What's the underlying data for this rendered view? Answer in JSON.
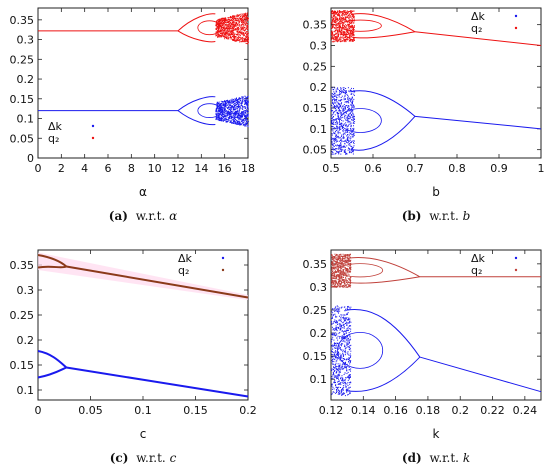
{
  "colors": {
    "dk": "#1a1aee",
    "q2_a": "#ee1111",
    "q2_c": "#8b3a1a",
    "q2_d": "#c0403a",
    "band": "#ffd9ee"
  },
  "chart_data": [
    {
      "id": "a",
      "type": "scatter",
      "xlabel": "α",
      "caption_letter": "(a)",
      "caption_text": "w.r.t. ",
      "caption_var": "α",
      "xlim": [
        0,
        18
      ],
      "ylim": [
        0,
        0.38
      ],
      "xticks": [
        0,
        2,
        4,
        6,
        8,
        10,
        12,
        14,
        16,
        18
      ],
      "xticklabels": [
        "0",
        "2",
        "4",
        "6",
        "8",
        "10",
        "12",
        "14",
        "16",
        "18"
      ],
      "yticks": [
        0,
        0.05,
        0.1,
        0.15,
        0.2,
        0.25,
        0.3,
        0.35
      ],
      "yticklabels": [
        "0",
        "0.05",
        "0.1",
        "0.15",
        "0.2",
        "0.25",
        "0.3",
        "0.35"
      ],
      "legend": {
        "position": "bottom-left",
        "entries": [
          "Δk",
          "q₂"
        ]
      },
      "series": [
        {
          "name": "Δk",
          "color": "dk",
          "base": 0.12,
          "bifurcation": 12,
          "spread": [
            0.08,
            0.16
          ],
          "chaos_start": 15.2
        },
        {
          "name": "q₂",
          "color": "q2_a",
          "base": 0.322,
          "bifurcation": 12,
          "spread": [
            0.29,
            0.37
          ],
          "chaos_start": 15.2
        }
      ]
    },
    {
      "id": "b",
      "type": "scatter",
      "xlabel": "b",
      "caption_letter": "(b)",
      "caption_text": "w.r.t. ",
      "caption_var": "b",
      "xlim": [
        0.5,
        1
      ],
      "ylim": [
        0.03,
        0.39
      ],
      "xticks": [
        0.5,
        0.6,
        0.7,
        0.8,
        0.9,
        1
      ],
      "xticklabels": [
        "0.5",
        "0.6",
        "0.7",
        "0.8",
        "0.9",
        "1"
      ],
      "yticks": [
        0.05,
        0.1,
        0.15,
        0.2,
        0.25,
        0.3,
        0.35
      ],
      "yticklabels": [
        "0.05",
        "0.1",
        "0.15",
        "0.2",
        "0.25",
        "0.3",
        "0.35"
      ],
      "legend": {
        "position": "top-right",
        "entries": [
          "Δk",
          "q₂"
        ]
      },
      "series": [
        {
          "name": "Δk",
          "color": "dk",
          "line_start": [
            0.7,
            0.13
          ],
          "line_end": [
            1,
            0.1
          ]
        },
        {
          "name": "q₂",
          "color": "q2_a",
          "line_start": [
            0.7,
            0.333
          ],
          "line_end": [
            1,
            0.3
          ]
        }
      ]
    },
    {
      "id": "c",
      "type": "line",
      "xlabel": "c",
      "caption_letter": "(c)",
      "caption_text": "w.r.t. ",
      "caption_var": "c",
      "xlim": [
        0,
        0.2
      ],
      "ylim": [
        0.08,
        0.38
      ],
      "xticks": [
        0,
        0.05,
        0.1,
        0.15,
        0.2
      ],
      "xticklabels": [
        "0",
        "0.05",
        "0.1",
        "0.15",
        "0.2"
      ],
      "yticks": [
        0.1,
        0.15,
        0.2,
        0.25,
        0.3,
        0.35
      ],
      "yticklabels": [
        "0.1",
        "0.15",
        "0.2",
        "0.25",
        "0.3",
        "0.35"
      ],
      "legend": {
        "position": "top-right",
        "entries": [
          "Δk",
          "q₂"
        ]
      },
      "series": [
        {
          "name": "Δk",
          "color": "dk",
          "branch_upper": 0.178,
          "branch_lower": 0.125,
          "merge": [
            0.027,
            0.145
          ],
          "end": [
            0.2,
            0.087
          ]
        },
        {
          "name": "q₂",
          "color": "q2_c",
          "branch_upper": 0.37,
          "branch_lower": 0.345,
          "merge": [
            0.027,
            0.347
          ],
          "end": [
            0.2,
            0.285
          ]
        }
      ]
    },
    {
      "id": "d",
      "type": "scatter",
      "xlabel": "k",
      "caption_letter": "(d)",
      "caption_text": "w.r.t. ",
      "caption_var": "k",
      "xlim": [
        0.12,
        0.25
      ],
      "ylim": [
        0.055,
        0.38
      ],
      "xticks": [
        0.12,
        0.14,
        0.16,
        0.18,
        0.2,
        0.22,
        0.24
      ],
      "xticklabels": [
        "0.12",
        "0.14",
        "0.16",
        "0.18",
        "0.2",
        "0.22",
        "0.24"
      ],
      "yticks": [
        0.1,
        0.15,
        0.2,
        0.25,
        0.3,
        0.35
      ],
      "yticklabels": [
        "0.1",
        "0.15",
        "0.2",
        "0.25",
        "0.3",
        "0.35"
      ],
      "legend": {
        "position": "top-right",
        "entries": [
          "Δk",
          "q₂"
        ]
      },
      "series": [
        {
          "name": "Δk",
          "color": "dk",
          "bifurcation": [
            0.175,
            0.148
          ],
          "end": [
            0.25,
            0.073
          ]
        },
        {
          "name": "q₂",
          "color": "q2_d",
          "bifurcation": [
            0.175,
            0.322
          ],
          "end": [
            0.25,
            0.322
          ]
        }
      ]
    }
  ]
}
